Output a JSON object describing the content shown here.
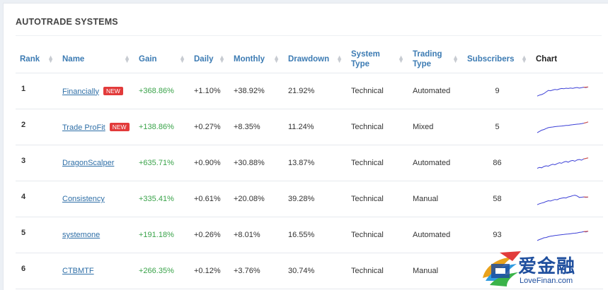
{
  "section_title": "AUTOTRADE SYSTEMS",
  "columns": [
    {
      "label": "Rank",
      "sortable": true
    },
    {
      "label": "Name",
      "sortable": true
    },
    {
      "label": "Gain",
      "sortable": true
    },
    {
      "label": "Daily",
      "sortable": true
    },
    {
      "label": "Monthly",
      "sortable": true
    },
    {
      "label": "Drawdown",
      "sortable": true
    },
    {
      "label": "System Type",
      "sortable": true
    },
    {
      "label": "Trading Type",
      "sortable": true
    },
    {
      "label": "Subscribers",
      "sortable": true
    },
    {
      "label": "Chart",
      "sortable": false
    }
  ],
  "rows": [
    {
      "rank": "1",
      "name": "Financially",
      "badge": "NEW",
      "gain": "+368.86%",
      "daily": "+1.10%",
      "monthly": "+38.92%",
      "drawdown": "21.92%",
      "system_type": "Technical",
      "trading_type": "Automated",
      "subscribers": "9",
      "spark": [
        0.1,
        0.18,
        0.22,
        0.3,
        0.42,
        0.55,
        0.52,
        0.58,
        0.62,
        0.6,
        0.66,
        0.7,
        0.68,
        0.72,
        0.7,
        0.74,
        0.71,
        0.75,
        0.78,
        0.73,
        0.76,
        0.8,
        0.77,
        0.82
      ]
    },
    {
      "rank": "2",
      "name": "Trade ProFit",
      "badge": "NEW",
      "gain": "+138.86%",
      "daily": "+0.27%",
      "monthly": "+8.35%",
      "drawdown": "11.24%",
      "system_type": "Technical",
      "trading_type": "Mixed",
      "subscribers": "5",
      "spark": [
        0.05,
        0.15,
        0.25,
        0.3,
        0.38,
        0.45,
        0.48,
        0.5,
        0.53,
        0.55,
        0.56,
        0.58,
        0.6,
        0.62,
        0.63,
        0.66,
        0.68,
        0.7,
        0.72,
        0.74,
        0.76,
        0.8,
        0.84,
        0.9
      ]
    },
    {
      "rank": "3",
      "name": "DragonScalper",
      "badge": "",
      "gain": "+635.71%",
      "daily": "+0.90%",
      "monthly": "+30.88%",
      "drawdown": "13.87%",
      "system_type": "Technical",
      "trading_type": "Automated",
      "subscribers": "86",
      "spark": [
        0.08,
        0.15,
        0.12,
        0.22,
        0.28,
        0.25,
        0.34,
        0.4,
        0.36,
        0.45,
        0.52,
        0.48,
        0.58,
        0.62,
        0.56,
        0.66,
        0.7,
        0.64,
        0.74,
        0.78,
        0.72,
        0.82,
        0.86,
        0.9
      ]
    },
    {
      "rank": "4",
      "name": "Consistency",
      "badge": "",
      "gain": "+335.41%",
      "daily": "+0.61%",
      "monthly": "+20.08%",
      "drawdown": "39.28%",
      "system_type": "Technical",
      "trading_type": "Manual",
      "subscribers": "58",
      "spark": [
        0.05,
        0.12,
        0.18,
        0.22,
        0.3,
        0.36,
        0.34,
        0.4,
        0.46,
        0.44,
        0.52,
        0.56,
        0.6,
        0.58,
        0.66,
        0.7,
        0.76,
        0.8,
        0.74,
        0.62,
        0.64,
        0.66,
        0.63,
        0.65
      ]
    },
    {
      "rank": "5",
      "name": "systemone",
      "badge": "",
      "gain": "+191.18%",
      "daily": "+0.26%",
      "monthly": "+8.01%",
      "drawdown": "16.55%",
      "system_type": "Technical",
      "trading_type": "Automated",
      "subscribers": "93",
      "spark": [
        0.06,
        0.14,
        0.2,
        0.28,
        0.3,
        0.36,
        0.4,
        0.42,
        0.46,
        0.48,
        0.5,
        0.52,
        0.54,
        0.56,
        0.58,
        0.6,
        0.62,
        0.64,
        0.66,
        0.7,
        0.72,
        0.76,
        0.74,
        0.8
      ]
    },
    {
      "rank": "6",
      "name": "CTBMTF",
      "badge": "",
      "gain": "+266.35%",
      "daily": "+0.12%",
      "monthly": "+3.76%",
      "drawdown": "30.74%",
      "system_type": "Technical",
      "trading_type": "Manual",
      "subscribers": "",
      "spark": []
    }
  ],
  "colors": {
    "accent_blue": "#3c7bb3",
    "gain_green": "#3aa34a",
    "badge_red": "#e23b3b",
    "spark_line": "#3b3fd6",
    "spark_end": "#e0523a"
  },
  "watermark": {
    "text": "爱金融",
    "sub": "LoveFinan.com"
  }
}
